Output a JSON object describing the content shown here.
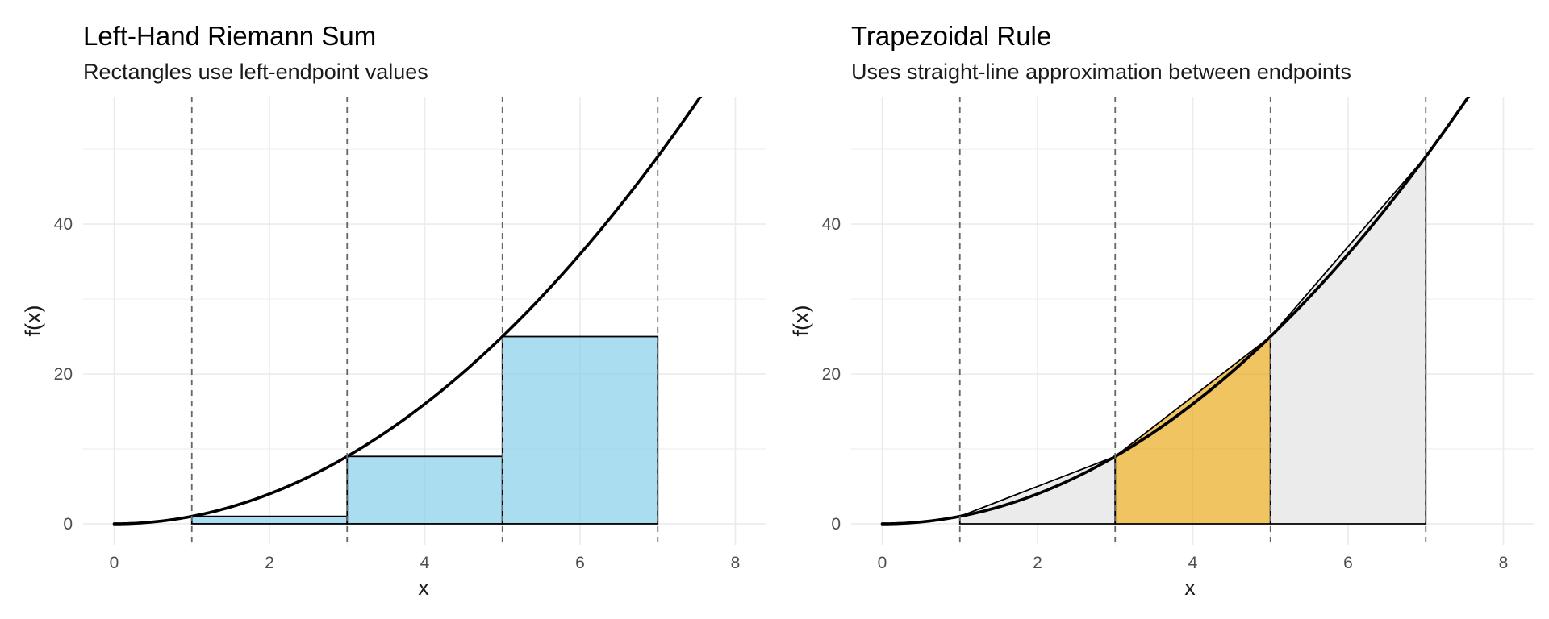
{
  "chart_data": [
    {
      "type": "area",
      "title": "Left-Hand Riemann Sum",
      "subtitle": "Rectangles use left-endpoint values",
      "xlabel": "x",
      "ylabel": "f(x)",
      "xlim": [
        -0.4,
        8.4
      ],
      "ylim": [
        -2.8,
        57.0
      ],
      "x_ticks": [
        0,
        2,
        4,
        6,
        8
      ],
      "y_ticks": [
        0,
        20,
        40
      ],
      "grid": true,
      "function": "f(x) = x^2",
      "curve_x_range": [
        0,
        7.6
      ],
      "partition_lines": [
        1,
        3,
        5,
        7
      ],
      "rectangles": [
        {
          "x0": 1,
          "x1": 3,
          "height": 1
        },
        {
          "x0": 3,
          "x1": 5,
          "height": 9
        },
        {
          "x0": 5,
          "x1": 7,
          "height": 25
        }
      ],
      "colors": {
        "fill": "#87CEEB",
        "outline": "#000000",
        "curve": "#000000",
        "partition": "#666666"
      }
    },
    {
      "type": "area",
      "title": "Trapezoidal Rule",
      "subtitle": "Uses straight-line approximation between endpoints",
      "xlabel": "x",
      "ylabel": "f(x)",
      "xlim": [
        -0.4,
        8.4
      ],
      "ylim": [
        -2.8,
        57.0
      ],
      "x_ticks": [
        0,
        2,
        4,
        6,
        8
      ],
      "y_ticks": [
        0,
        20,
        40
      ],
      "grid": true,
      "function": "f(x) = x^2",
      "curve_x_range": [
        0,
        7.6
      ],
      "partition_lines": [
        1,
        3,
        5,
        7
      ],
      "trapezoids": [
        {
          "x0": 1,
          "x1": 3,
          "y0": 1,
          "y1": 9,
          "highlight": false
        },
        {
          "x0": 3,
          "x1": 5,
          "y0": 9,
          "y1": 25,
          "highlight": true
        },
        {
          "x0": 5,
          "x1": 7,
          "y0": 25,
          "y1": 49,
          "highlight": false
        }
      ],
      "colors": {
        "fill": "#EBEBEB",
        "highlight": "#E69F00",
        "outline": "#000000",
        "curve": "#000000",
        "partition": "#666666"
      }
    }
  ]
}
